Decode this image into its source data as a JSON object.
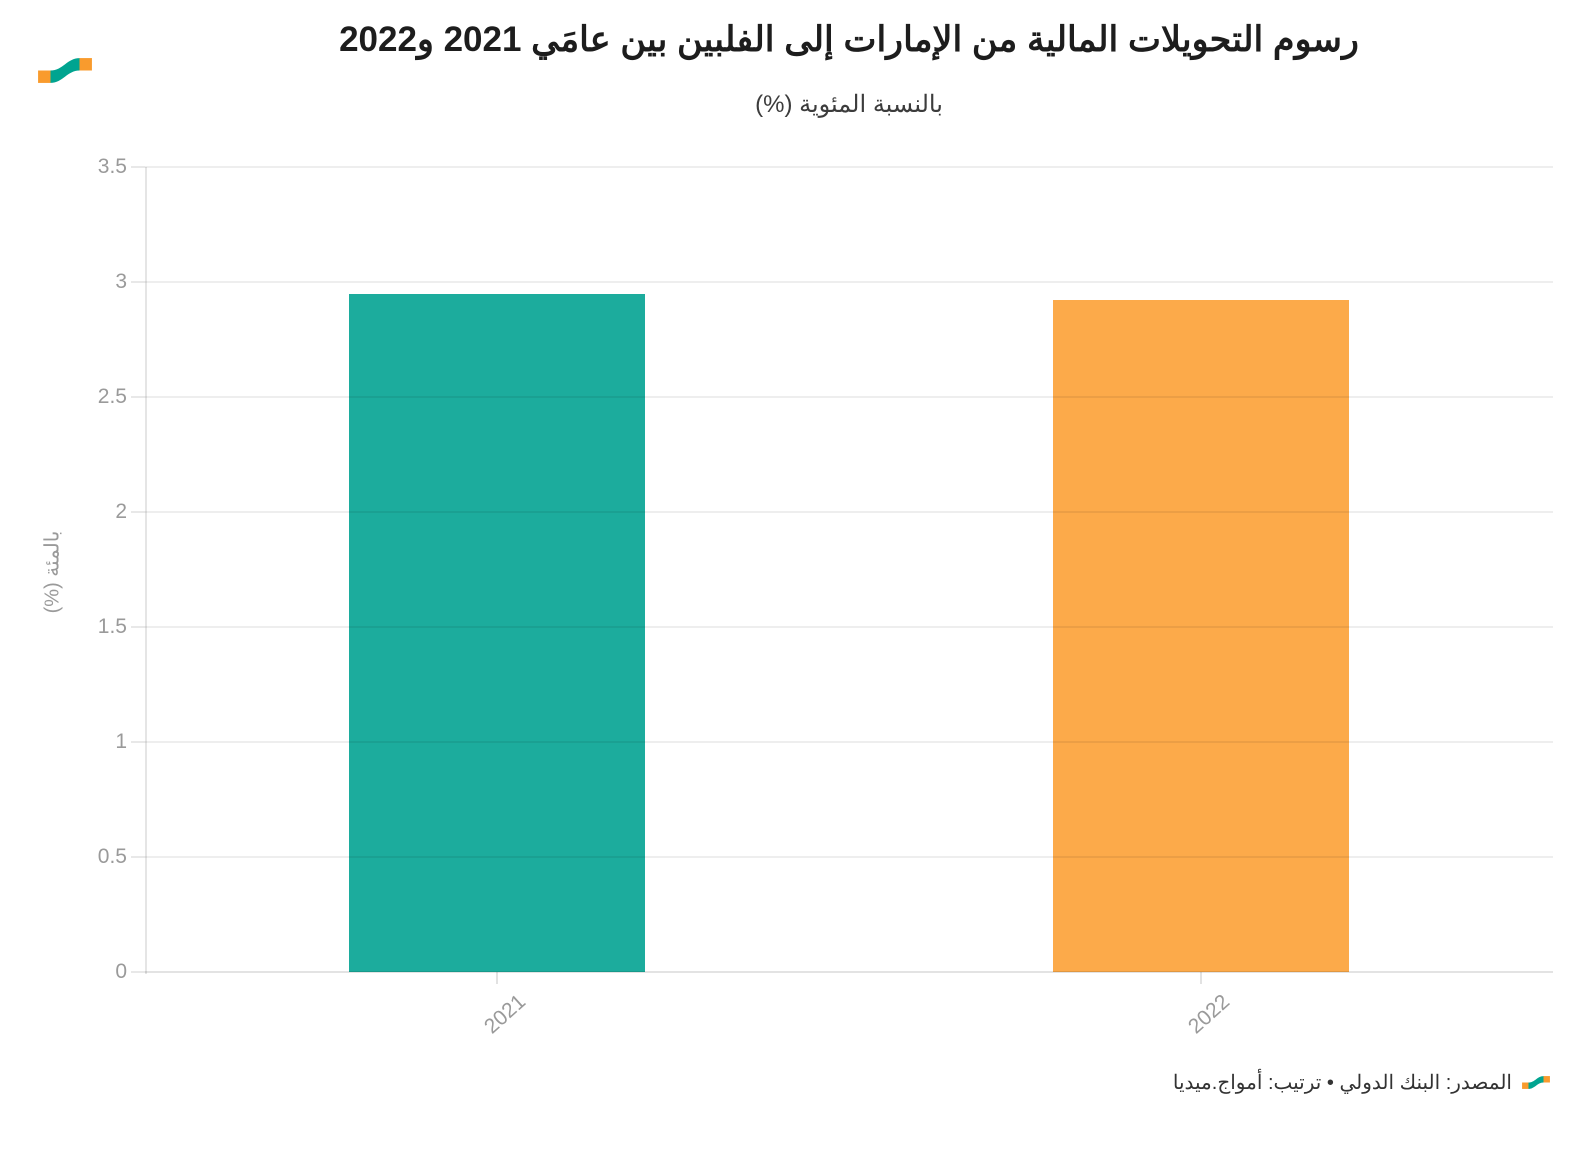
{
  "brand": {
    "logo_name": "amwaj-media-wave-logo",
    "orange": "#F99B2D",
    "teal": "#00A490"
  },
  "chart_data": {
    "type": "bar",
    "title": "رسوم التحويلات المالية من الإمارات إلى الفلبين بين عامَي 2021 و2022",
    "subtitle": "بالنسبة المئوية (%)",
    "categories": [
      "2021",
      "2022"
    ],
    "values": [
      2.95,
      2.92
    ],
    "bar_colors": [
      "#1CAC9D",
      "#FCAA4A"
    ],
    "xlabel": "",
    "ylabel": "بالمئة (%)",
    "ylim": [
      0,
      3.5
    ],
    "yticks": [
      0,
      0.5,
      1,
      1.5,
      2,
      2.5,
      3,
      3.5
    ],
    "xtick_rotation": -42,
    "grid": true,
    "legend": "none"
  },
  "footer": {
    "credit": "المصدر: البنك الدولي • ترتيب: أمواج.ميديا"
  }
}
